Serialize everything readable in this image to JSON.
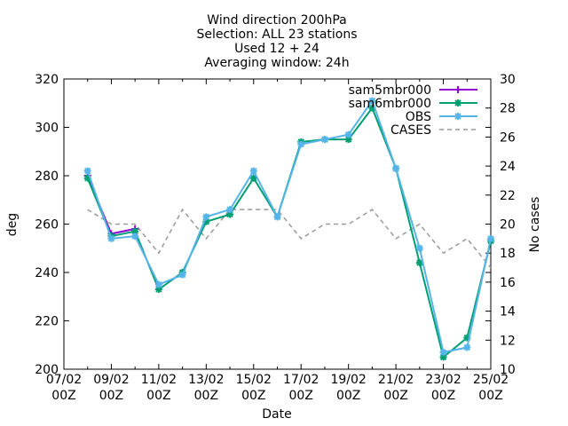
{
  "chart_data": {
    "type": "line",
    "title_lines": [
      "Wind direction 200hPa",
      "Selection: ALL     23 stations",
      "Used 12 + 24",
      "Averaging window: 24h"
    ],
    "xlabel": "Date",
    "ylabel": "deg",
    "y2label": "No cases",
    "ylim": [
      200,
      320
    ],
    "y2lim": [
      10,
      30
    ],
    "xlim": [
      "07/02 00Z",
      "25/02 00Z"
    ],
    "x_ticks": [
      {
        "day": 7,
        "l1": "07/02",
        "l2": "00Z"
      },
      {
        "day": 9,
        "l1": "09/02",
        "l2": "00Z"
      },
      {
        "day": 11,
        "l1": "11/02",
        "l2": "00Z"
      },
      {
        "day": 13,
        "l1": "13/02",
        "l2": "00Z"
      },
      {
        "day": 15,
        "l1": "15/02",
        "l2": "00Z"
      },
      {
        "day": 17,
        "l1": "17/02",
        "l2": "00Z"
      },
      {
        "day": 19,
        "l1": "19/02",
        "l2": "00Z"
      },
      {
        "day": 21,
        "l1": "21/02",
        "l2": "00Z"
      },
      {
        "day": 23,
        "l1": "23/02",
        "l2": "00Z"
      },
      {
        "day": 25,
        "l1": "25/02",
        "l2": "00Z"
      }
    ],
    "y_ticks": [
      200,
      220,
      240,
      260,
      280,
      300,
      320
    ],
    "y2_ticks": [
      10,
      12,
      14,
      16,
      18,
      20,
      22,
      24,
      26,
      28,
      30
    ],
    "grid": false,
    "legend_position": "top-right",
    "series": [
      {
        "name": "sam5mbr000",
        "color": "#9400d3",
        "marker": "plus",
        "axis": "y1",
        "x": [
          8,
          9,
          10
        ],
        "values": [
          280,
          256,
          258
        ]
      },
      {
        "name": "sam6mbr000",
        "color": "#009e73",
        "marker": "star",
        "axis": "y1",
        "x": [
          8,
          9,
          10,
          11,
          12,
          13,
          14,
          15,
          16,
          17,
          18,
          19,
          20,
          21,
          22,
          23,
          24,
          25
        ],
        "values": [
          279,
          255,
          257,
          233,
          240,
          261,
          264,
          279,
          263,
          294,
          295,
          295,
          308,
          283,
          244,
          205,
          213,
          253
        ]
      },
      {
        "name": "OBS",
        "color": "#56b4e9",
        "marker": "star",
        "axis": "y1",
        "x": [
          8,
          9,
          10,
          11,
          12,
          13,
          14,
          15,
          16,
          17,
          18,
          19,
          20,
          21,
          22,
          23,
          24,
          25
        ],
        "values": [
          282,
          254,
          255,
          235,
          239,
          263,
          266,
          282,
          263,
          293,
          295,
          297,
          311,
          283,
          250,
          207,
          209,
          254
        ]
      },
      {
        "name": "CASES",
        "color": "#999999",
        "marker": "none",
        "dashed": true,
        "axis": "y2",
        "x": [
          8,
          9,
          10,
          11,
          12,
          13,
          14,
          15,
          16,
          17,
          18,
          19,
          20,
          21,
          22,
          23,
          24,
          25
        ],
        "values": [
          21,
          20,
          20,
          18,
          21,
          19,
          21,
          21,
          21,
          19,
          20,
          20,
          21,
          19,
          20,
          18,
          19,
          17
        ]
      }
    ]
  }
}
